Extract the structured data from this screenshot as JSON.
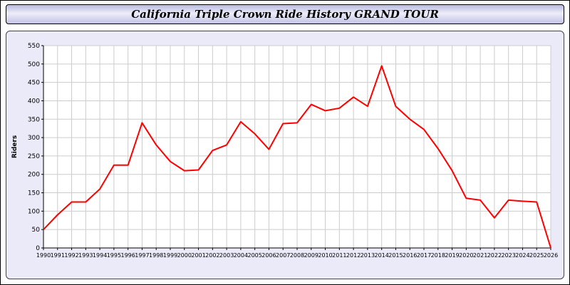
{
  "title": "California Triple Crown Ride History GRAND TOUR",
  "chart_data": {
    "type": "line",
    "title": "California Triple Crown Ride History GRAND TOUR",
    "xlabel": "",
    "ylabel": "Riders",
    "ylim": [
      0,
      550
    ],
    "ytick_step": 50,
    "grid": true,
    "line_color": "#ff0000",
    "x": [
      1990,
      1991,
      1992,
      1993,
      1994,
      1995,
      1996,
      1997,
      1998,
      1999,
      2000,
      2001,
      2002,
      2003,
      2004,
      2005,
      2006,
      2007,
      2008,
      2009,
      2010,
      2011,
      2012,
      2013,
      2014,
      2015,
      2016,
      2017,
      2018,
      2019,
      2020,
      2021,
      2022,
      2023,
      2024,
      2025,
      2026
    ],
    "values": [
      50,
      90,
      125,
      125,
      160,
      225,
      225,
      340,
      280,
      235,
      210,
      212,
      265,
      280,
      343,
      310,
      268,
      338,
      340,
      390,
      373,
      380,
      410,
      385,
      495,
      385,
      350,
      322,
      270,
      210,
      135,
      130,
      82,
      130,
      127,
      125,
      0
    ]
  }
}
